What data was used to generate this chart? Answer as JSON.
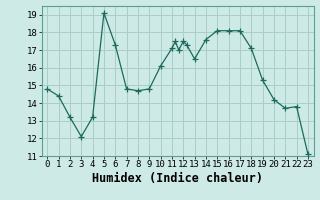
{
  "x": [
    0,
    1,
    2,
    3,
    4,
    5,
    6,
    7,
    8,
    9,
    10,
    11,
    11.3,
    11.6,
    12,
    12.3,
    13,
    14,
    15,
    16,
    17,
    18,
    19,
    20,
    21,
    22,
    23
  ],
  "y": [
    14.8,
    14.4,
    13.2,
    12.1,
    13.2,
    19.1,
    17.3,
    14.8,
    14.7,
    14.8,
    16.1,
    17.1,
    17.5,
    17.0,
    17.5,
    17.3,
    16.5,
    17.6,
    18.1,
    18.1,
    18.1,
    17.1,
    15.3,
    14.2,
    13.7,
    13.8,
    11.1
  ],
  "line_color": "#1a6b5e",
  "marker": "+",
  "marker_indices": [
    0,
    1,
    2,
    3,
    4,
    5,
    6,
    7,
    8,
    9,
    10,
    11,
    12,
    14,
    16,
    17,
    18,
    19,
    20,
    21,
    22,
    23,
    24,
    25,
    26
  ],
  "marker_size": 4,
  "bg_color": "#ceeae6",
  "grid_color": "#aacdc8",
  "xlabel": "Humidex (Indice chaleur)",
  "xlim": [
    -0.5,
    23.5
  ],
  "ylim": [
    11,
    19.5
  ],
  "yticks": [
    11,
    12,
    13,
    14,
    15,
    16,
    17,
    18,
    19
  ],
  "xticks": [
    0,
    1,
    2,
    3,
    4,
    5,
    6,
    7,
    8,
    9,
    10,
    11,
    12,
    13,
    14,
    15,
    16,
    17,
    18,
    19,
    20,
    21,
    22,
    23
  ],
  "tick_label_size": 6.5,
  "xlabel_size": 8.5
}
